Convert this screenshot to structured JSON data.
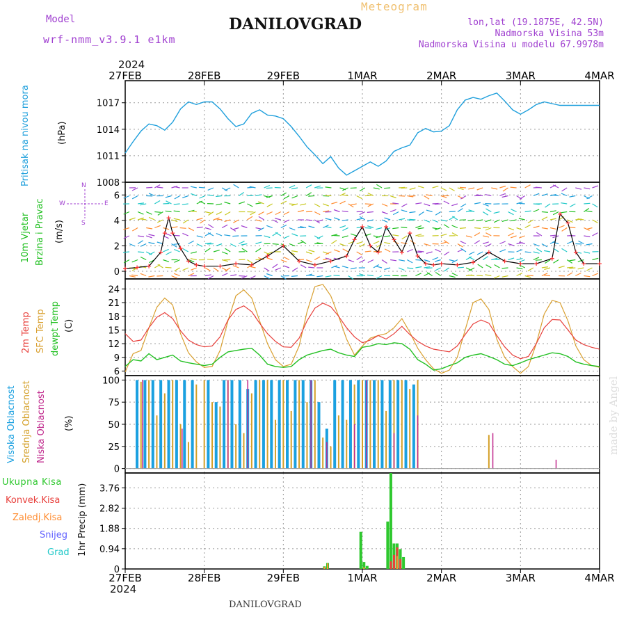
{
  "header": {
    "model_label": "Model",
    "model_value": "wrf-nmm_v3.9.1 e1km",
    "meteogram_label": "Meteogram",
    "station_title": "DANILOVGRAD",
    "lonlat": "lon,lat (19.1875E, 42.5N)",
    "elevation": "Nadmorska Visina 53m",
    "model_elevation": "Nadmorska Visina u modelu 67.9978m",
    "year_top": "2024",
    "year_bottom": "2024",
    "footer_station": "DANILOVGRAD",
    "watermark": "made by Angel"
  },
  "panel_labels": {
    "pressure": [
      "Pritisak na nivou mora",
      "(hPa)"
    ],
    "wind": [
      "10m Vjetar",
      "Brzina i Pravac",
      "(m/s)"
    ],
    "temp": [
      "2m Temp",
      "SFC Temp",
      "dewpt Temp",
      "(C)"
    ],
    "cloud": [
      "Visoka Oblacnost",
      "Srednja Oblacnost",
      "Niska Oblacnost",
      "(%)"
    ],
    "precip": [
      "Ukupna Kisa",
      "Konvek.Kisa",
      "Zaledj.Kisa",
      "Snijeg",
      "Grad",
      "1hr Precip (mm)"
    ],
    "compass": [
      "W",
      "E",
      "N",
      "S"
    ]
  },
  "colors": {
    "pressure": "#1e9fdc",
    "wind_speed": "#000000",
    "wind_marker": "#ff3030",
    "temp_2m": "#e8403c",
    "temp_sfc": "#d9a030",
    "temp_dew": "#22c022",
    "cloud_high": "#1aa0e0",
    "cloud_mid": "#d4a028",
    "cloud_low": "#c0288c",
    "precip_total": "#2ec82e",
    "precip_conv": "#e8403c",
    "precip_frozen": "#ff8c30",
    "snow": "#6060ff",
    "hail": "#20c8c8",
    "model_text": "#a040d0",
    "meteogram_text": "#f0c070",
    "grid": "#999999"
  },
  "chart_data": [
    {
      "type": "line",
      "panel": "pressure",
      "x_categories": [
        "27FEB",
        "28FEB",
        "29FEB",
        "1MAR",
        "2MAR",
        "3MAR",
        "4MAR"
      ],
      "ylabel": "(hPa)",
      "ylim": [
        1008,
        1019.5
      ],
      "yticks": [
        1008,
        1011,
        1014,
        1017
      ],
      "series": [
        {
          "name": "Pritisak na nivou mora",
          "x": [
            0,
            0.1,
            0.2,
            0.3,
            0.4,
            0.5,
            0.6,
            0.7,
            0.8,
            0.9,
            1.0,
            1.1,
            1.2,
            1.3,
            1.4,
            1.5,
            1.6,
            1.7,
            1.8,
            1.9,
            2.0,
            2.1,
            2.2,
            2.3,
            2.4,
            2.5,
            2.6,
            2.7,
            2.8,
            2.9,
            3.0,
            3.1,
            3.2,
            3.3,
            3.4,
            3.5,
            3.6,
            3.7,
            3.8,
            3.9,
            4.0,
            4.1,
            4.2,
            4.3,
            4.4,
            4.5,
            4.6,
            4.7,
            4.8,
            4.9,
            5.0,
            5.1,
            5.2,
            5.3,
            5.4,
            5.5,
            5.6,
            5.7,
            5.8,
            5.9,
            6.0
          ],
          "values": [
            1011.3,
            1012.6,
            1013.8,
            1014.6,
            1014.4,
            1013.9,
            1014.8,
            1016.3,
            1017.1,
            1016.8,
            1017.1,
            1017.1,
            1016.3,
            1015.2,
            1014.3,
            1014.6,
            1015.8,
            1016.2,
            1015.6,
            1015.5,
            1015.2,
            1014.3,
            1013.2,
            1012.0,
            1011.1,
            1010.1,
            1010.9,
            1009.6,
            1008.8,
            1009.3,
            1009.8,
            1010.3,
            1009.8,
            1010.4,
            1011.5,
            1011.9,
            1012.2,
            1013.6,
            1014.1,
            1013.7,
            1013.8,
            1014.4,
            1016.2,
            1017.3,
            1017.6,
            1017.4,
            1017.8,
            1018.1,
            1017.2,
            1016.2,
            1015.7,
            1016.2,
            1016.8,
            1017.1,
            1016.9,
            1016.7,
            1016.7,
            1016.7,
            1016.7,
            1016.7,
            1016.7
          ]
        }
      ]
    },
    {
      "type": "line",
      "panel": "wind",
      "x_categories": [
        "27FEB",
        "28FEB",
        "29FEB",
        "1MAR",
        "2MAR",
        "3MAR",
        "4MAR"
      ],
      "ylabel": "(m/s)",
      "ylim": [
        -0.6,
        7.0
      ],
      "yticks": [
        0,
        2,
        4,
        6
      ],
      "series": [
        {
          "name": "10m Vjetar",
          "x": [
            0,
            0.15,
            0.3,
            0.45,
            0.5,
            0.55,
            0.6,
            0.7,
            0.8,
            0.9,
            1.0,
            1.2,
            1.4,
            1.6,
            1.8,
            2.0,
            2.2,
            2.4,
            2.6,
            2.8,
            2.9,
            3.0,
            3.1,
            3.2,
            3.3,
            3.4,
            3.5,
            3.6,
            3.7,
            3.8,
            3.9,
            4.0,
            4.2,
            4.4,
            4.6,
            4.8,
            5.0,
            5.2,
            5.4,
            5.5,
            5.6,
            5.7,
            5.8,
            6.0
          ],
          "values": [
            0.2,
            0.3,
            0.4,
            1.5,
            3.0,
            4.2,
            3.0,
            1.8,
            0.8,
            0.5,
            0.4,
            0.4,
            0.6,
            0.5,
            1.2,
            2.0,
            0.8,
            0.5,
            0.8,
            1.2,
            2.5,
            3.5,
            2.0,
            1.5,
            3.5,
            2.5,
            1.5,
            3.0,
            1.2,
            0.6,
            0.5,
            0.6,
            0.5,
            0.7,
            1.5,
            0.8,
            0.6,
            0.6,
            1.0,
            4.5,
            3.8,
            1.5,
            0.6,
            0.6
          ]
        }
      ]
    },
    {
      "type": "line",
      "panel": "temperature",
      "x_categories": [
        "27FEB",
        "28FEB",
        "29FEB",
        "1MAR",
        "2MAR",
        "3MAR",
        "4MAR"
      ],
      "ylabel": "(C)",
      "ylim": [
        5,
        26.2
      ],
      "yticks": [
        6,
        9,
        12,
        15,
        18,
        21,
        24
      ],
      "series": [
        {
          "name": "2m Temp",
          "x": [
            0,
            0.1,
            0.2,
            0.3,
            0.4,
            0.5,
            0.6,
            0.7,
            0.8,
            0.9,
            1.0,
            1.1,
            1.2,
            1.3,
            1.4,
            1.5,
            1.6,
            1.7,
            1.8,
            1.9,
            2.0,
            2.1,
            2.2,
            2.3,
            2.4,
            2.5,
            2.6,
            2.7,
            2.8,
            2.9,
            3.0,
            3.1,
            3.2,
            3.3,
            3.4,
            3.5,
            3.6,
            3.7,
            3.8,
            3.9,
            4.0,
            4.1,
            4.2,
            4.3,
            4.4,
            4.5,
            4.6,
            4.7,
            4.8,
            4.9,
            5.0,
            5.1,
            5.2,
            5.3,
            5.4,
            5.5,
            5.6,
            5.7,
            5.8,
            5.9,
            6.0
          ],
          "values": [
            14.2,
            12.5,
            12.8,
            15.5,
            17.8,
            18.8,
            17.5,
            14.8,
            12.8,
            11.8,
            11.3,
            11.5,
            13.5,
            17.2,
            19.5,
            20.3,
            19.0,
            16.5,
            14.2,
            12.5,
            11.3,
            11.2,
            13.2,
            17.0,
            19.8,
            20.9,
            20.1,
            18.0,
            15.5,
            13.5,
            12.2,
            12.8,
            13.8,
            13.0,
            14.2,
            15.8,
            14.0,
            12.5,
            11.5,
            10.8,
            10.5,
            10.2,
            11.5,
            14.0,
            16.3,
            17.2,
            16.5,
            13.8,
            11.3,
            9.5,
            8.7,
            9.2,
            12.0,
            15.5,
            17.3,
            17.2,
            15.0,
            12.8,
            11.8,
            11.2,
            10.8
          ]
        },
        {
          "name": "SFC Temp",
          "x": [
            0,
            0.1,
            0.2,
            0.3,
            0.4,
            0.5,
            0.6,
            0.7,
            0.8,
            0.9,
            1.0,
            1.1,
            1.2,
            1.3,
            1.4,
            1.5,
            1.6,
            1.7,
            1.8,
            1.9,
            2.0,
            2.1,
            2.2,
            2.3,
            2.4,
            2.5,
            2.6,
            2.7,
            2.8,
            2.9,
            3.0,
            3.1,
            3.2,
            3.3,
            3.4,
            3.5,
            3.6,
            3.7,
            3.8,
            3.9,
            4.0,
            4.1,
            4.2,
            4.3,
            4.4,
            4.5,
            4.6,
            4.7,
            4.8,
            4.9,
            5.0,
            5.1,
            5.2,
            5.3,
            5.4,
            5.5,
            5.6,
            5.7,
            5.8,
            5.9,
            6.0
          ],
          "values": [
            5.8,
            9.8,
            10.5,
            15.5,
            20.0,
            22.0,
            20.5,
            14.2,
            10.0,
            8.0,
            6.8,
            7.0,
            10.5,
            17.0,
            22.5,
            23.8,
            22.0,
            17.0,
            12.0,
            8.5,
            7.0,
            7.5,
            11.5,
            19.0,
            24.5,
            25.0,
            22.5,
            18.0,
            13.0,
            9.5,
            11.5,
            13.2,
            13.8,
            14.2,
            15.5,
            17.5,
            14.5,
            11.0,
            8.5,
            6.5,
            5.5,
            6.2,
            9.0,
            15.0,
            21.0,
            21.8,
            19.5,
            13.0,
            9.0,
            7.0,
            5.5,
            7.0,
            12.0,
            18.5,
            21.5,
            21.0,
            17.0,
            11.5,
            8.5,
            7.2,
            6.8
          ]
        },
        {
          "name": "dewpt Temp",
          "x": [
            0,
            0.1,
            0.2,
            0.3,
            0.4,
            0.5,
            0.6,
            0.7,
            0.8,
            0.9,
            1.0,
            1.1,
            1.2,
            1.3,
            1.4,
            1.5,
            1.6,
            1.7,
            1.8,
            1.9,
            2.0,
            2.1,
            2.2,
            2.3,
            2.4,
            2.5,
            2.6,
            2.7,
            2.8,
            2.9,
            3.0,
            3.1,
            3.2,
            3.3,
            3.4,
            3.5,
            3.6,
            3.7,
            3.8,
            3.9,
            4.0,
            4.1,
            4.2,
            4.3,
            4.4,
            4.5,
            4.6,
            4.7,
            4.8,
            4.9,
            5.0,
            5.1,
            5.2,
            5.3,
            5.4,
            5.5,
            5.6,
            5.7,
            5.8,
            5.9,
            6.0
          ],
          "values": [
            7.0,
            8.5,
            8.2,
            9.8,
            8.5,
            9.0,
            9.5,
            8.2,
            7.8,
            7.5,
            7.2,
            7.5,
            9.0,
            10.2,
            10.5,
            10.8,
            11.0,
            9.5,
            7.5,
            7.0,
            6.8,
            7.0,
            8.5,
            9.5,
            10.0,
            10.5,
            10.8,
            10.0,
            9.5,
            9.2,
            11.2,
            11.5,
            12.0,
            11.8,
            12.2,
            12.0,
            10.8,
            8.5,
            7.5,
            6.2,
            6.5,
            7.2,
            7.8,
            9.0,
            9.5,
            9.8,
            9.2,
            8.5,
            7.5,
            7.2,
            7.8,
            8.5,
            9.0,
            9.5,
            10.0,
            9.8,
            9.2,
            8.0,
            7.5,
            7.2,
            7.0
          ]
        }
      ]
    },
    {
      "type": "bar",
      "panel": "cloud",
      "x_categories": [
        "27FEB",
        "28FEB",
        "29FEB",
        "1MAR",
        "2MAR",
        "3MAR",
        "4MAR"
      ],
      "ylabel": "(%)",
      "ylim": [
        -5,
        105
      ],
      "yticks": [
        0,
        25,
        50,
        75,
        100
      ],
      "series": [
        {
          "name": "Visoka Oblacnost",
          "x": [
            0.15,
            0.25,
            0.35,
            0.45,
            0.55,
            0.65,
            0.75,
            0.85,
            1.05,
            1.15,
            1.25,
            1.35,
            1.45,
            1.55,
            1.65,
            1.75,
            1.85,
            1.95,
            2.05,
            2.15,
            2.25,
            2.35,
            2.45,
            2.55,
            2.65,
            2.75,
            2.85,
            2.95,
            3.05,
            3.15,
            3.25,
            3.35,
            3.45,
            3.55,
            3.65
          ],
          "values": [
            100,
            100,
            100,
            100,
            100,
            100,
            100,
            100,
            100,
            75,
            100,
            100,
            100,
            90,
            100,
            100,
            100,
            100,
            100,
            100,
            100,
            100,
            75,
            45,
            100,
            100,
            100,
            100,
            100,
            100,
            100,
            100,
            100,
            100,
            95
          ]
        },
        {
          "name": "Srednja Oblacnost",
          "x": [
            0.2,
            0.3,
            0.4,
            0.5,
            0.6,
            0.7,
            0.8,
            0.9,
            1.0,
            1.1,
            1.2,
            1.3,
            1.4,
            1.5,
            1.6,
            1.7,
            1.8,
            1.9,
            2.0,
            2.1,
            2.2,
            2.3,
            2.4,
            2.5,
            2.6,
            2.7,
            2.8,
            2.9,
            3.0,
            3.1,
            3.2,
            3.3,
            3.4,
            3.5,
            3.6,
            3.7,
            4.6
          ],
          "values": [
            98,
            100,
            60,
            85,
            100,
            50,
            30,
            95,
            100,
            75,
            70,
            100,
            50,
            40,
            85,
            100,
            100,
            55,
            100,
            65,
            100,
            75,
            100,
            35,
            25,
            60,
            55,
            95,
            100,
            100,
            100,
            65,
            100,
            100,
            90,
            100,
            38
          ]
        },
        {
          "name": "Niska Oblacnost",
          "x": [
            0.22,
            0.72,
            1.3,
            1.55,
            2.35,
            2.55,
            2.9,
            3.05,
            3.4,
            3.7,
            4.65,
            5.45
          ],
          "values": [
            100,
            45,
            100,
            100,
            100,
            30,
            50,
            100,
            40,
            60,
            40,
            10
          ]
        }
      ]
    },
    {
      "type": "bar",
      "panel": "precip",
      "x_categories": [
        "27FEB",
        "28FEB",
        "29FEB",
        "1MAR",
        "2MAR",
        "3MAR",
        "4MAR"
      ],
      "ylabel": "1hr Precip (mm)",
      "ylim": [
        0,
        4.45
      ],
      "yticks": [
        0,
        0.94,
        1.88,
        2.82,
        3.76
      ],
      "series": [
        {
          "name": "Ukupna Kisa",
          "x": [
            2.52,
            2.56,
            2.98,
            3.02,
            3.06,
            3.32,
            3.36,
            3.4,
            3.44,
            3.48,
            3.52
          ],
          "values": [
            0.12,
            0.28,
            1.72,
            0.32,
            0.14,
            2.2,
            4.45,
            1.18,
            1.18,
            0.92,
            0.55
          ]
        },
        {
          "name": "Konvek.Kisa",
          "x": [
            3.36,
            3.4,
            3.44,
            3.48
          ],
          "values": [
            0.35,
            0.65,
            1.0,
            0.45
          ]
        },
        {
          "name": "Zaledj.Kisa",
          "x": [
            2.52,
            2.56,
            3.02,
            3.44
          ],
          "values": [
            0.1,
            0.26,
            0.08,
            0.6
          ]
        }
      ]
    }
  ]
}
